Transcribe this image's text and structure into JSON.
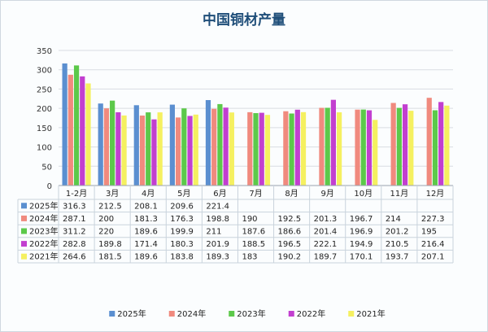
{
  "chart_data": {
    "type": "bar",
    "title": "中国铜材产量",
    "xlabel": "",
    "ylabel": "",
    "ylim": [
      0,
      350
    ],
    "yticks": [
      0,
      50,
      100,
      150,
      200,
      250,
      300,
      350
    ],
    "grid": true,
    "legend_position": "bottom",
    "categories": [
      "1-2月",
      "3月",
      "4月",
      "5月",
      "6月",
      "7月",
      "8月",
      "9月",
      "10月",
      "11月",
      "12月"
    ],
    "series": [
      {
        "name": "2025年",
        "color": "#5b8fd0",
        "values": [
          316.3,
          212.5,
          208.1,
          209.6,
          221.4,
          null,
          null,
          null,
          null,
          null,
          null
        ]
      },
      {
        "name": "2024年",
        "color": "#f08a7e",
        "values": [
          287.1,
          200,
          181.3,
          176.3,
          198.8,
          190,
          192.5,
          201.3,
          196.7,
          214,
          227.3
        ]
      },
      {
        "name": "2023年",
        "color": "#5cc94a",
        "values": [
          311.2,
          220,
          189.6,
          199.9,
          211,
          187.6,
          186.6,
          201.4,
          196.9,
          201.2,
          195
        ]
      },
      {
        "name": "2022年",
        "color": "#c23fd0",
        "values": [
          282.8,
          189.8,
          171.4,
          180.3,
          201.9,
          188.5,
          196.5,
          222.1,
          194.9,
          210.5,
          216.4
        ]
      },
      {
        "name": "2021年",
        "color": "#f5f060",
        "values": [
          264.6,
          181.5,
          189.6,
          183.8,
          189.3,
          183,
          190.2,
          189.7,
          170.1,
          193.7,
          207.1
        ]
      }
    ],
    "table": {
      "rows": [
        {
          "label": "2025年",
          "cells": [
            "316.3",
            "212.5",
            "208.1",
            "209.6",
            "221.4",
            "",
            "",
            "",
            "",
            "",
            ""
          ]
        },
        {
          "label": "2024年",
          "cells": [
            "287.1",
            "200",
            "181.3",
            "176.3",
            "198.8",
            "190",
            "192.5",
            "201.3",
            "196.7",
            "214",
            "227.3"
          ]
        },
        {
          "label": "2023年",
          "cells": [
            "311.2",
            "220",
            "189.6",
            "199.9",
            "211",
            "187.6",
            "186.6",
            "201.4",
            "196.9",
            "201.2",
            "195"
          ]
        },
        {
          "label": "2022年",
          "cells": [
            "282.8",
            "189.8",
            "171.4",
            "180.3",
            "201.9",
            "188.5",
            "196.5",
            "222.1",
            "194.9",
            "210.5",
            "216.4"
          ]
        },
        {
          "label": "2021年",
          "cells": [
            "264.6",
            "181.5",
            "189.6",
            "183.8",
            "189.3",
            "183",
            "190.2",
            "189.7",
            "170.1",
            "193.7",
            "207.1"
          ]
        }
      ]
    }
  }
}
